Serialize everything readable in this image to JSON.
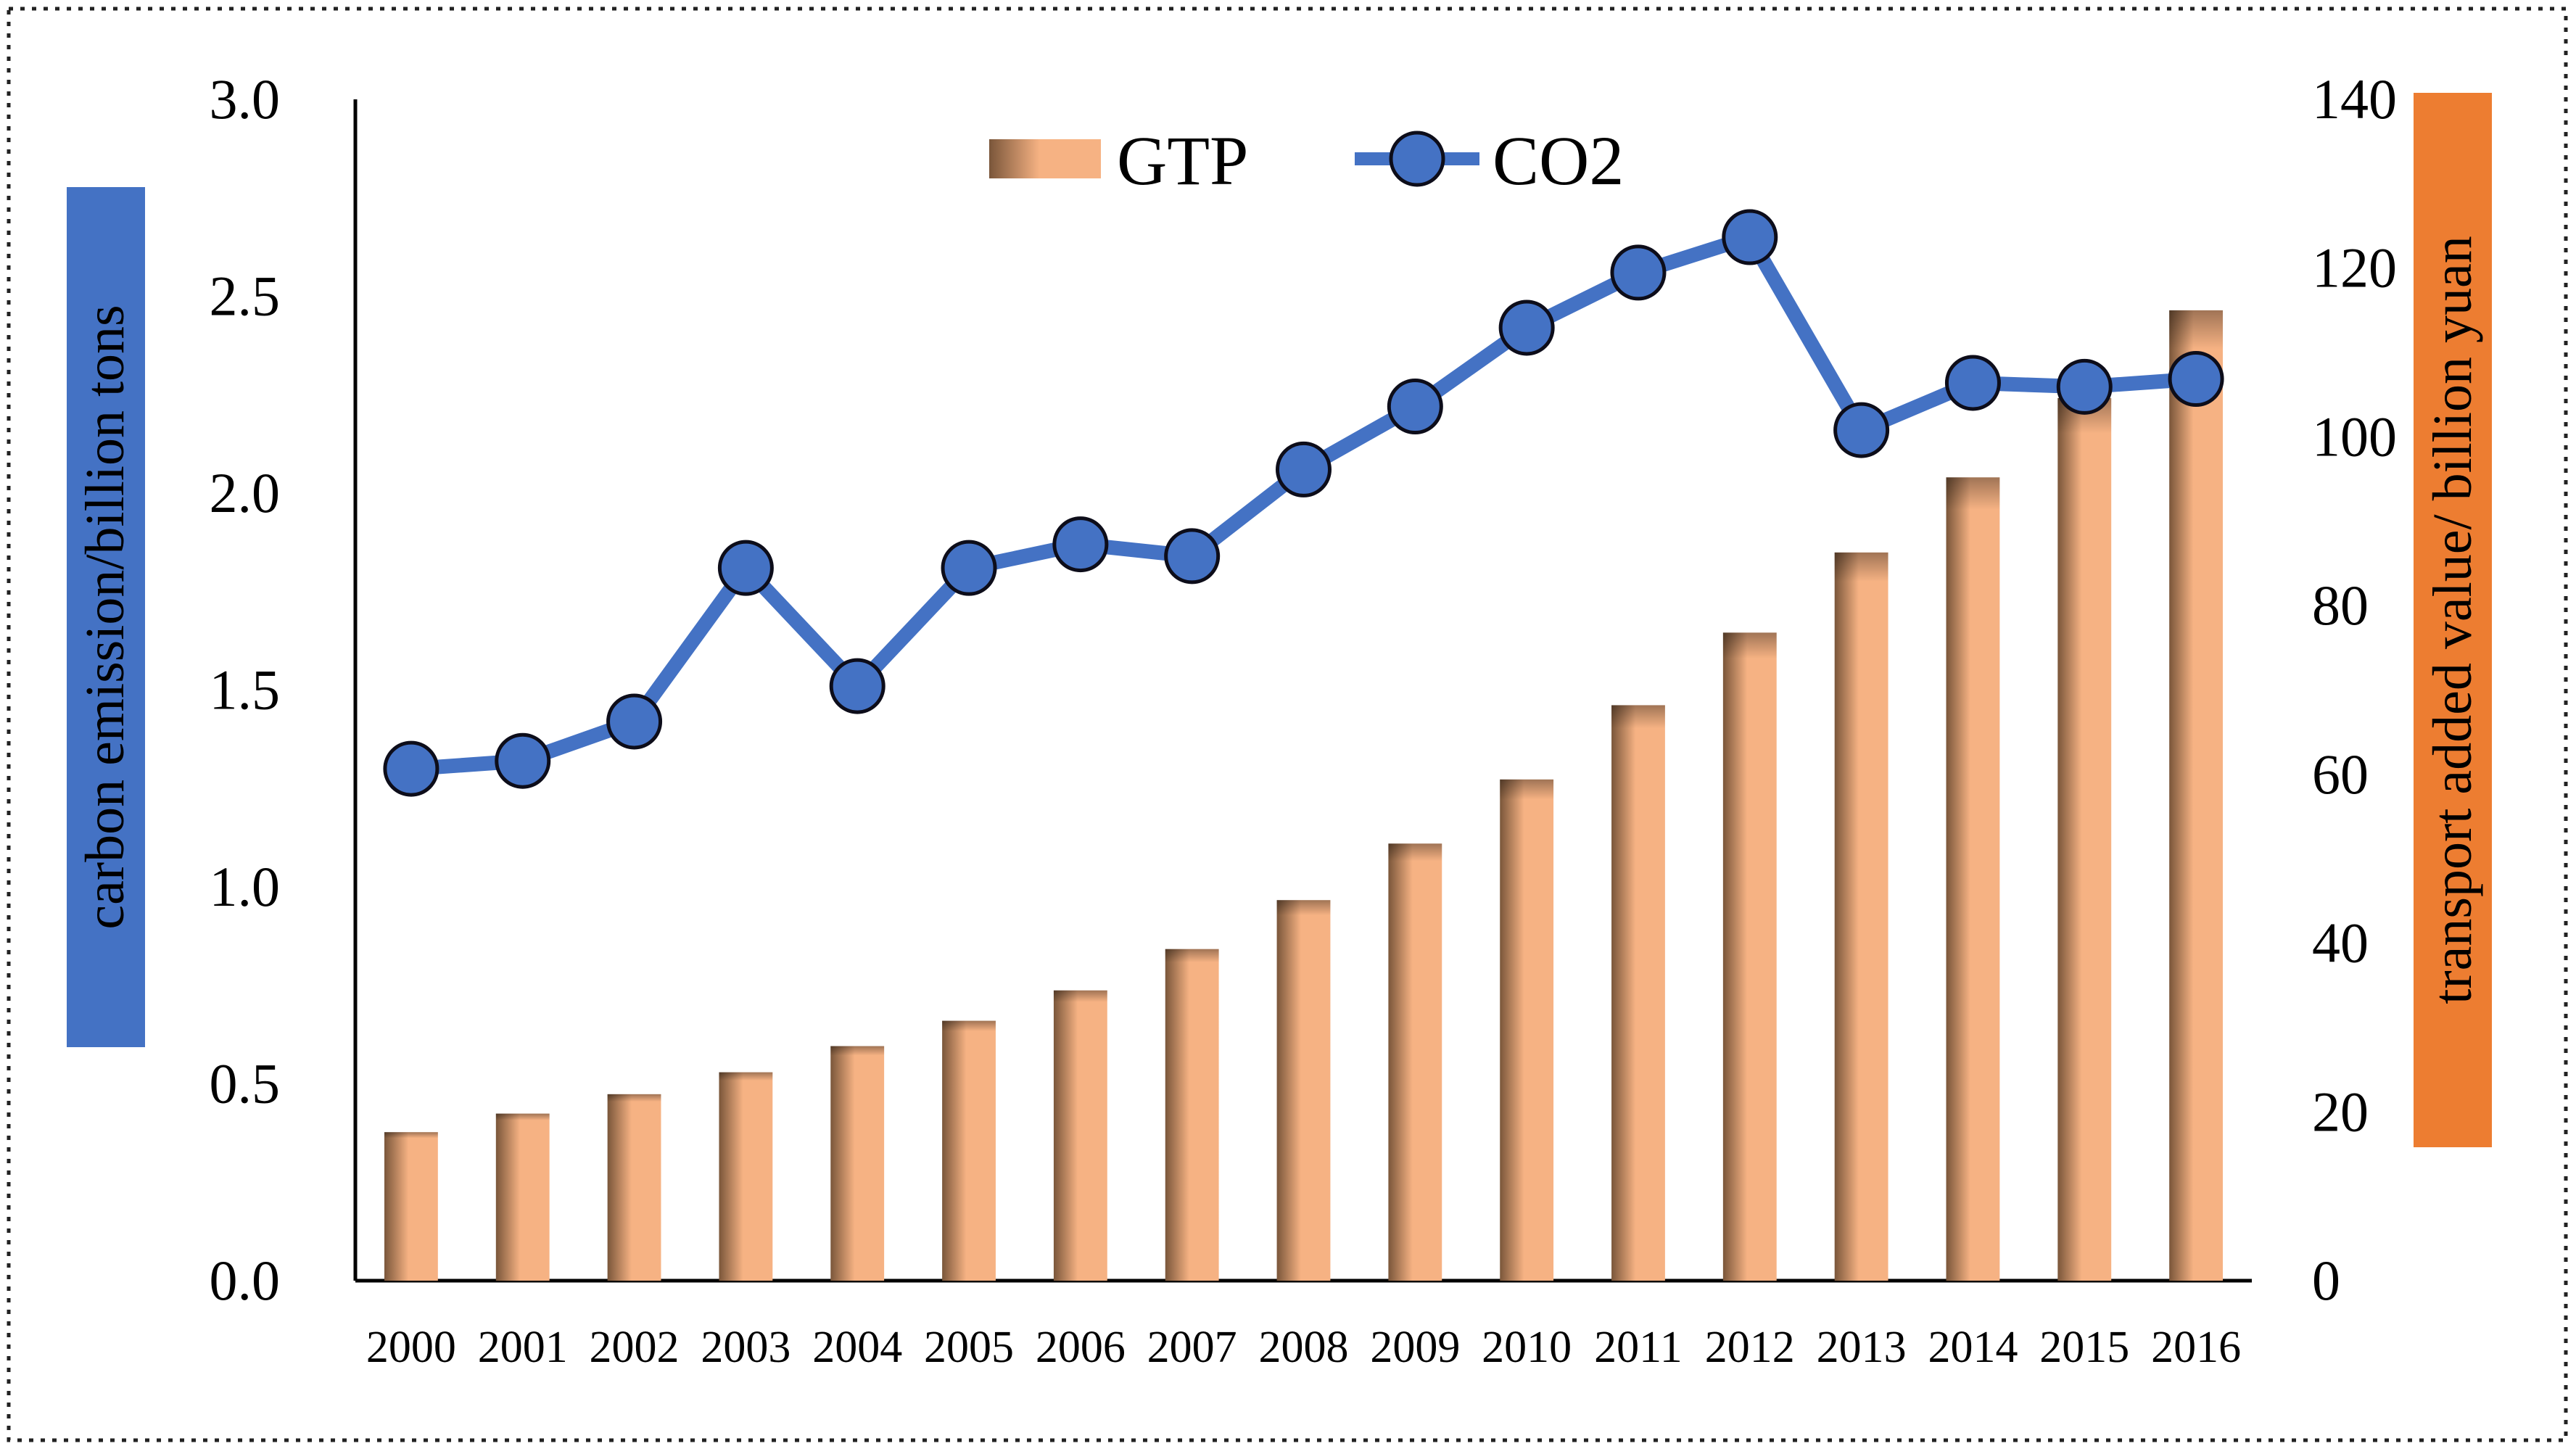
{
  "chart_data": {
    "type": "bar+line",
    "categories": [
      "2000",
      "2001",
      "2002",
      "2003",
      "2004",
      "2005",
      "2006",
      "2007",
      "2008",
      "2009",
      "2010",
      "2011",
      "2012",
      "2013",
      "2014",
      "2015",
      "2016"
    ],
    "series": [
      {
        "name": "GTP",
        "kind": "bar",
        "axis": "right",
        "values": [
          17.6,
          19.8,
          22.1,
          24.7,
          27.8,
          30.8,
          34.4,
          39.3,
          45.1,
          51.8,
          59.4,
          68.2,
          76.8,
          86.3,
          95.2,
          104.6,
          115.0
        ]
      },
      {
        "name": "CO2",
        "kind": "line",
        "axis": "left",
        "values": [
          1.3,
          1.32,
          1.42,
          1.81,
          1.51,
          1.81,
          1.87,
          1.84,
          2.06,
          2.22,
          2.42,
          2.56,
          2.65,
          2.16,
          2.28,
          2.27,
          2.29
        ]
      }
    ],
    "y_left": {
      "label": "carbon emission/billion tons",
      "ylim": [
        0,
        3.0
      ],
      "ticks": [
        "0.0",
        "0.5",
        "1.0",
        "1.5",
        "2.0",
        "2.5",
        "3.0"
      ]
    },
    "y_right": {
      "label": "transport added value/ billion yuan",
      "ylim": [
        0,
        140
      ],
      "ticks": [
        "0",
        "20",
        "40",
        "60",
        "80",
        "100",
        "120",
        "140"
      ]
    },
    "legend": {
      "position": "top-center",
      "items": [
        "GTP",
        "CO2"
      ]
    },
    "colors": {
      "bar_light": "#f6b283",
      "bar_dark": "#7a563a",
      "line": "#4472c4",
      "marker_fill": "#4472c4",
      "marker_stroke": "#0d0d1a",
      "left_label_bg": "#4472c4",
      "right_label_bg": "#ed7d31"
    },
    "grid": false
  }
}
